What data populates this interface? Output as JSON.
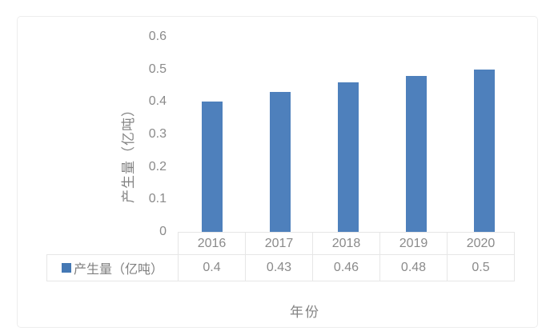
{
  "chart_data": {
    "type": "bar",
    "categories": [
      "2016",
      "2017",
      "2018",
      "2019",
      "2020"
    ],
    "series": [
      {
        "name": "产生量（亿吨）",
        "values": [
          0.4,
          0.43,
          0.46,
          0.48,
          0.5
        ]
      }
    ],
    "title": "",
    "xlabel": "年份",
    "ylabel": "产生量（亿吨）",
    "ylim": [
      0,
      0.6
    ],
    "yticks": [
      "0",
      "0.1",
      "0.2",
      "0.3",
      "0.4",
      "0.5",
      "0.6"
    ],
    "grid": false,
    "legend_position": "data-table-left",
    "bar_color": "#4e80bc",
    "legend_swatch_color": "#4478b4",
    "text_color": "#8a8a8a",
    "table_border_color": "#e6e6e6",
    "frame_border_color": "#ededed"
  }
}
